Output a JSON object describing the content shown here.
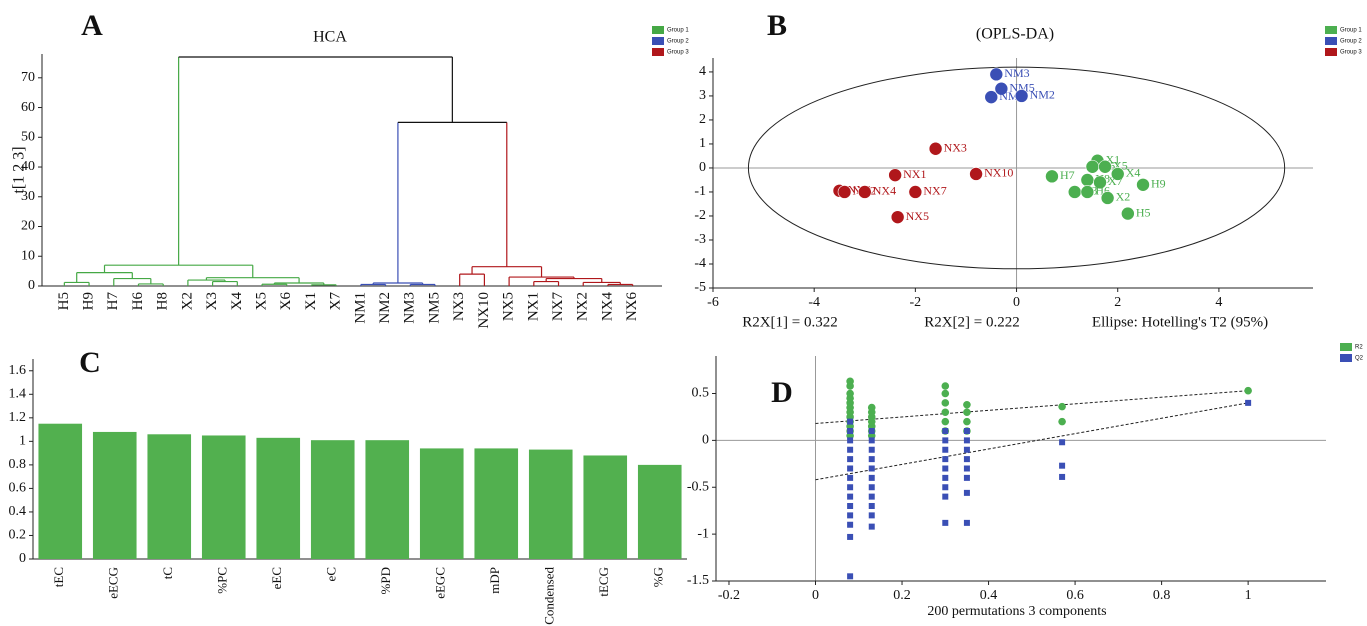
{
  "chart_data": [
    {
      "type": "dendrogram",
      "panel": "A",
      "title": "HCA",
      "ylabel": "t[1 2 3]",
      "ylim": [
        0,
        78
      ],
      "yticks": [
        0,
        10,
        20,
        30,
        40,
        50,
        60,
        70
      ],
      "leaves": [
        "H5",
        "H9",
        "H7",
        "H6",
        "H8",
        "X2",
        "X3",
        "X4",
        "X5",
        "X6",
        "X1",
        "X7",
        "NM1",
        "NM2",
        "NM3",
        "NM5",
        "NX3",
        "NX10",
        "NX5",
        "NX1",
        "NX7",
        "NX2",
        "NX4",
        "NX6"
      ],
      "groups": [
        {
          "name": "Group 1",
          "color": "#45a845",
          "leaves": [
            0,
            1,
            2,
            3,
            4,
            5,
            6,
            7,
            8,
            9,
            10,
            11
          ]
        },
        {
          "name": "Group 2",
          "color": "#3a4fb5",
          "leaves": [
            12,
            13,
            14,
            15
          ]
        },
        {
          "name": "Group 3",
          "color": "#b0171b",
          "leaves": [
            16,
            17,
            18,
            19,
            20,
            21,
            22,
            23
          ]
        }
      ],
      "links": [
        [
          3,
          4,
          0.7
        ],
        [
          0,
          1,
          1.2
        ],
        [
          2,
          24,
          2.5
        ],
        [
          25,
          26,
          4.5
        ],
        [
          10,
          11,
          0.4
        ],
        [
          8,
          9,
          0.6
        ],
        [
          29,
          28,
          1.0
        ],
        [
          6,
          7,
          1.5
        ],
        [
          5,
          31,
          2.0
        ],
        [
          32,
          30,
          2.8
        ],
        [
          27,
          33,
          7
        ],
        [
          12,
          13,
          0.5
        ],
        [
          14,
          15,
          0.5
        ],
        [
          35,
          36,
          1.0
        ],
        [
          16,
          17,
          4
        ],
        [
          19,
          20,
          1.5
        ],
        [
          22,
          23,
          0.5
        ],
        [
          21,
          40,
          1.2
        ],
        [
          39,
          41,
          2.5
        ],
        [
          18,
          42,
          3
        ],
        [
          38,
          43,
          6.5
        ],
        [
          37,
          44,
          55
        ],
        [
          34,
          45,
          77
        ]
      ]
    },
    {
      "type": "scatter",
      "panel": "B",
      "title": "(OPLS-DA)",
      "xlim": [
        -6,
        5.86
      ],
      "xticks": [
        -6,
        -4,
        -2,
        0,
        2,
        4
      ],
      "ylim": [
        -5,
        4.58
      ],
      "yticks": [
        -5,
        -4,
        -3,
        -2,
        -1,
        0,
        1,
        2,
        3,
        4
      ],
      "ellipse_radii": [
        5.3,
        4.2
      ],
      "annotations": [
        "R2X[1] = 0.322",
        "R2X[2] = 0.222",
        "Ellipse: Hotelling's T2 (95%)"
      ],
      "series": [
        {
          "name": "Group 1",
          "color": "#4caf50",
          "labels": [
            "X1",
            "X6",
            "X5",
            "X4",
            "H7",
            "H8",
            "X7",
            "H9",
            "X3",
            "H6",
            "X2",
            "H5"
          ],
          "x": [
            1.6,
            1.5,
            1.75,
            2.0,
            0.7,
            1.4,
            1.65,
            2.5,
            1.15,
            1.4,
            1.8,
            2.2
          ],
          "y": [
            0.3,
            0.05,
            0.05,
            -0.25,
            -0.35,
            -0.5,
            -0.6,
            -0.7,
            -1.0,
            -1.0,
            -1.25,
            -1.9
          ]
        },
        {
          "name": "Group 2",
          "color": "#3a4fb5",
          "labels": [
            "NM3",
            "NM5",
            "NM1",
            "NM2"
          ],
          "x": [
            -0.4,
            -0.3,
            -0.5,
            0.1
          ],
          "y": [
            3.9,
            3.3,
            2.95,
            3.0
          ]
        },
        {
          "name": "Group 3",
          "color": "#b0171b",
          "labels": [
            "NX3",
            "NX1",
            "NX10",
            "NX6",
            "NX2",
            "NX4",
            "NX7",
            "NX5"
          ],
          "x": [
            -1.6,
            -2.4,
            -0.8,
            -3.5,
            -3.4,
            -3.0,
            -2.0,
            -2.35
          ],
          "y": [
            0.8,
            -0.3,
            -0.25,
            -0.95,
            -1.0,
            -1.0,
            -1.0,
            -2.05
          ]
        }
      ]
    },
    {
      "type": "bar",
      "panel": "C",
      "color": "#52b04f",
      "categories": [
        "tEC",
        "eECG",
        "tC",
        "%PC",
        "eEC",
        "eC",
        "%PD",
        "eEGC",
        "mDP",
        "Condensed",
        "tECG",
        "%G"
      ],
      "values": [
        1.15,
        1.08,
        1.06,
        1.05,
        1.03,
        1.01,
        1.01,
        0.94,
        0.94,
        0.93,
        0.88,
        0.8
      ],
      "ylim": [
        0,
        1.7
      ],
      "yticks": [
        0,
        0.2,
        0.4,
        0.6,
        0.8,
        1,
        1.2,
        1.4,
        1.6
      ]
    },
    {
      "type": "permutation",
      "panel": "D",
      "xlabel": "200 permutations 3 components",
      "xlim": [
        -0.23,
        1.18
      ],
      "xticks": [
        -0.2,
        0,
        0.2,
        0.4,
        0.6,
        0.8,
        1
      ],
      "ylim": [
        -1.5,
        0.9
      ],
      "yticks": [
        -1.5,
        -1,
        -0.5,
        0,
        0.5
      ],
      "series": [
        {
          "name": "R2",
          "color": "#4caf50",
          "marker": "circle",
          "x": [
            0.08,
            0.08,
            0.08,
            0.08,
            0.08,
            0.08,
            0.08,
            0.08,
            0.08,
            0.08,
            0.08,
            0.08,
            0.13,
            0.13,
            0.13,
            0.13,
            0.13,
            0.13,
            0.13,
            0.3,
            0.3,
            0.3,
            0.3,
            0.3,
            0.3,
            0.35,
            0.35,
            0.35,
            0.35,
            0.57,
            0.57,
            1
          ],
          "y": [
            0.63,
            0.58,
            0.5,
            0.45,
            0.4,
            0.35,
            0.3,
            0.25,
            0.2,
            0.15,
            0.1,
            0.05,
            0.35,
            0.3,
            0.25,
            0.2,
            0.15,
            0.1,
            0.05,
            0.58,
            0.5,
            0.4,
            0.3,
            0.2,
            0.1,
            0.38,
            0.3,
            0.2,
            0.1,
            0.36,
            0.2,
            0.53
          ],
          "trend": {
            "x": [
              0,
              1
            ],
            "y": [
              0.18,
              0.53
            ]
          }
        },
        {
          "name": "Q2",
          "color": "#3a4fb5",
          "marker": "square",
          "x": [
            0.08,
            0.08,
            0.08,
            0.08,
            0.08,
            0.08,
            0.08,
            0.08,
            0.08,
            0.08,
            0.08,
            0.08,
            0.08,
            0.08,
            0.13,
            0.13,
            0.13,
            0.13,
            0.13,
            0.13,
            0.13,
            0.13,
            0.13,
            0.13,
            0.13,
            0.3,
            0.3,
            0.3,
            0.3,
            0.3,
            0.3,
            0.3,
            0.3,
            0.3,
            0.35,
            0.35,
            0.35,
            0.35,
            0.35,
            0.35,
            0.35,
            0.35,
            0.57,
            0.57,
            0.57,
            1
          ],
          "y": [
            -1.45,
            -1.03,
            -0.9,
            -0.8,
            -0.7,
            -0.6,
            -0.5,
            -0.4,
            -0.3,
            -0.2,
            -0.1,
            0,
            0.1,
            0.2,
            -0.92,
            -0.8,
            -0.7,
            -0.6,
            -0.5,
            -0.4,
            -0.3,
            -0.2,
            -0.1,
            0,
            0.1,
            -0.88,
            -0.6,
            -0.5,
            -0.4,
            -0.3,
            -0.2,
            -0.1,
            0,
            0.1,
            -0.88,
            -0.56,
            -0.4,
            -0.3,
            -0.2,
            -0.1,
            0,
            0.1,
            -0.02,
            -0.27,
            -0.39,
            0.4
          ],
          "trend": {
            "x": [
              0,
              1
            ],
            "y": [
              -0.42,
              0.4
            ]
          }
        }
      ]
    }
  ]
}
